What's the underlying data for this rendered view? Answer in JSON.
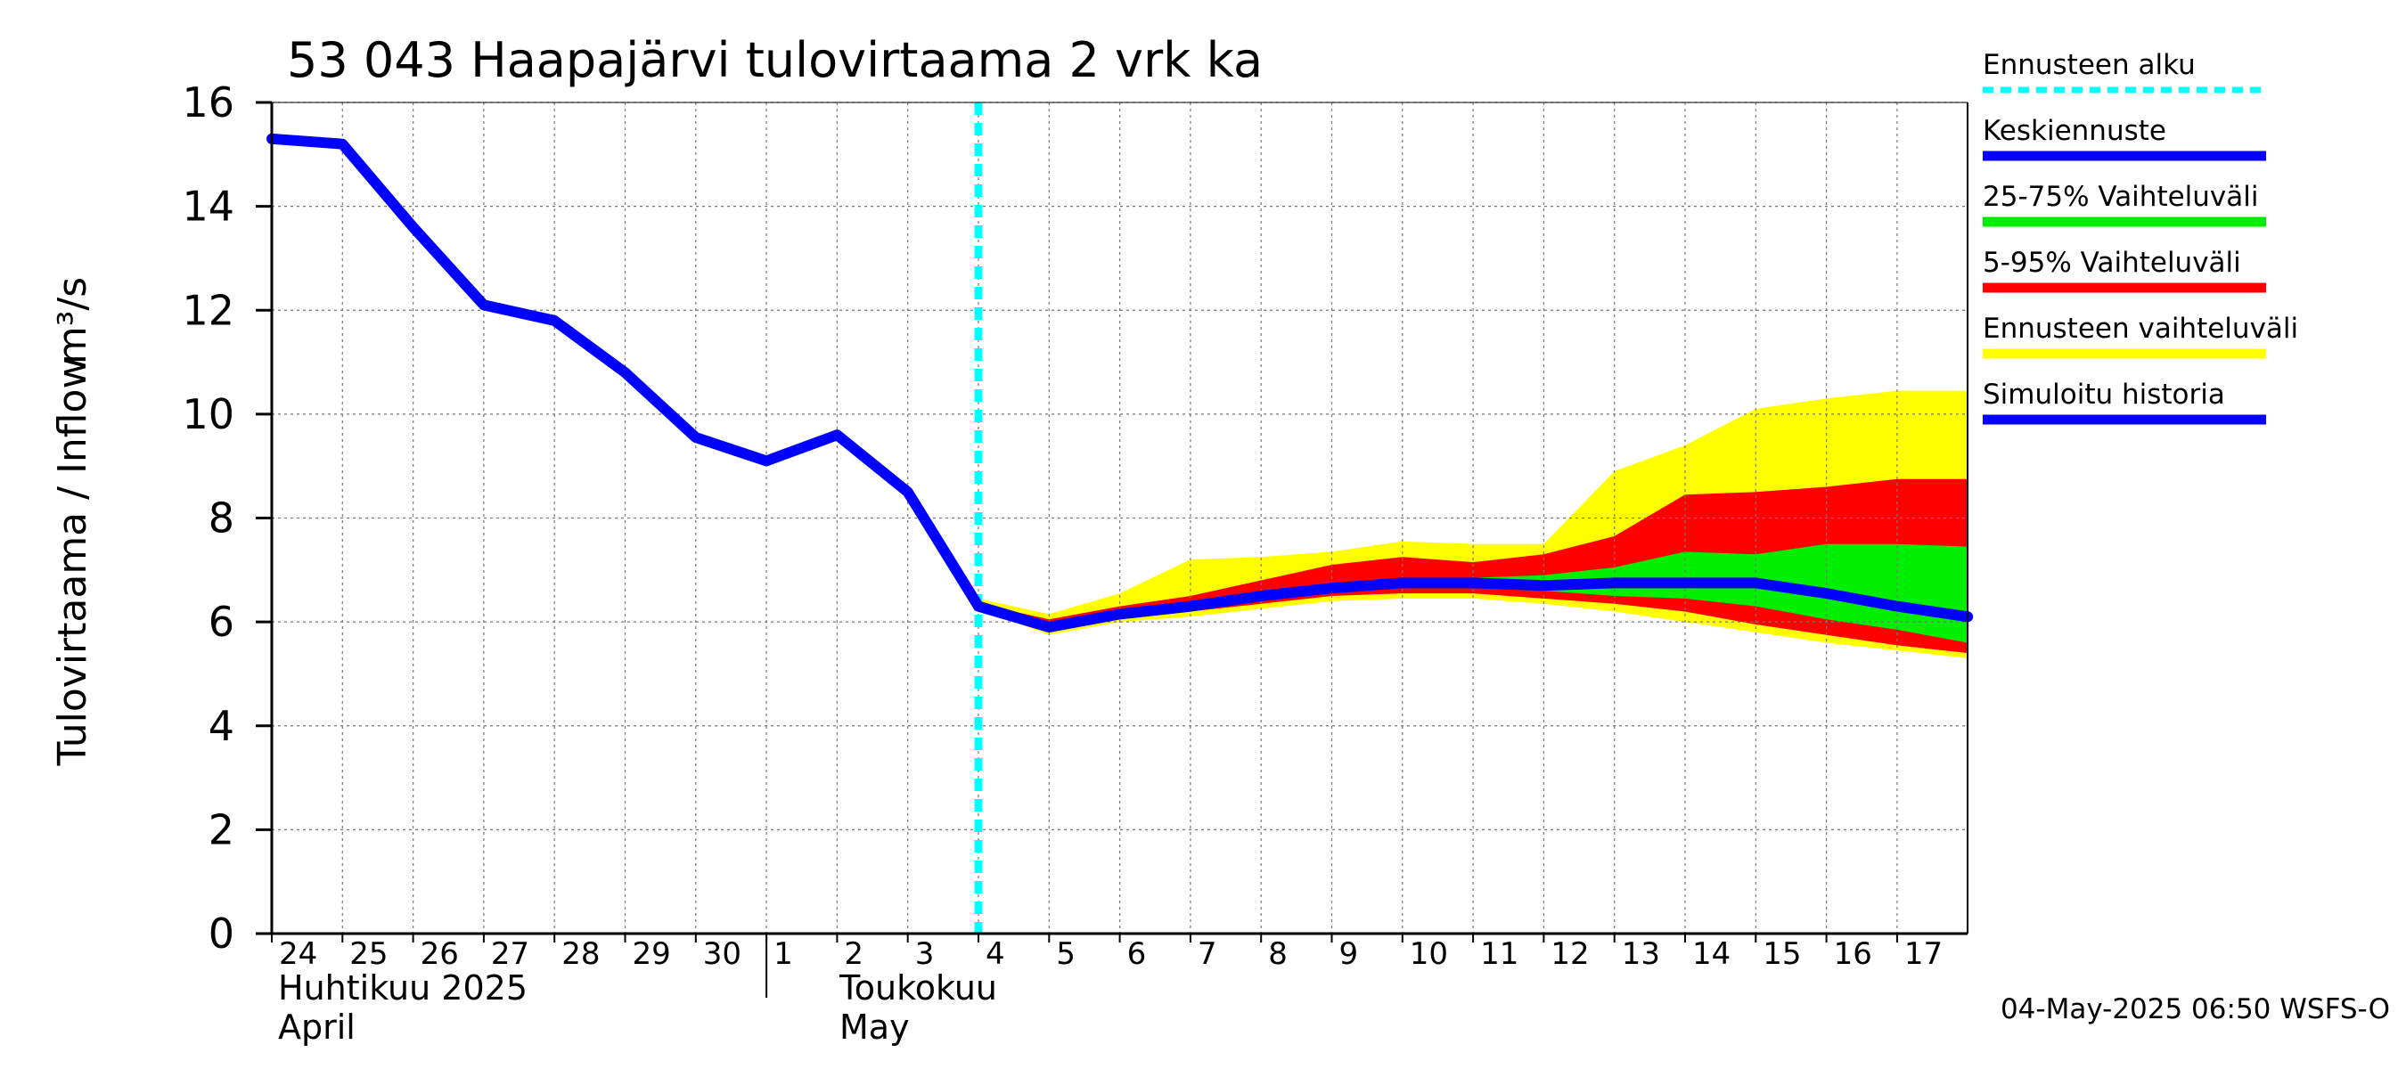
{
  "chart_data": {
    "type": "area",
    "title": "53 043 Haapajärvi tulovirtaama 2 vrk ka",
    "ylabel_fi": "Tulovirtaama / Inflow",
    "ylabel_unit": "m³/s",
    "ylim": [
      0,
      16
    ],
    "yticks": [
      "0",
      "2",
      "4",
      "6",
      "8",
      "10",
      "12",
      "14",
      "16"
    ],
    "x_day_labels": [
      "24",
      "25",
      "26",
      "27",
      "28",
      "29",
      "30",
      "1",
      "2",
      "3",
      "4",
      "5",
      "6",
      "7",
      "8",
      "9",
      "10",
      "11",
      "12",
      "13",
      "14",
      "15",
      "16",
      "17"
    ],
    "month_labels": {
      "april_fi": "Huhtikuu  2025",
      "april_en": "April",
      "may_fi": "Toukokuu",
      "may_en": "May"
    },
    "dates": [
      "2025-04-24",
      "2025-04-25",
      "2025-04-26",
      "2025-04-27",
      "2025-04-28",
      "2025-04-29",
      "2025-04-30",
      "2025-05-01",
      "2025-05-02",
      "2025-05-03",
      "2025-05-04",
      "2025-05-05",
      "2025-05-06",
      "2025-05-07",
      "2025-05-08",
      "2025-05-09",
      "2025-05-10",
      "2025-05-11",
      "2025-05-12",
      "2025-05-13",
      "2025-05-14",
      "2025-05-15",
      "2025-05-16",
      "2025-05-17",
      "2025-05-18"
    ],
    "forecast_start": "2025-05-04",
    "series": [
      {
        "name": "Simuloitu historia",
        "color": "#0000ff",
        "points": [
          [
            "2025-04-24",
            15.3
          ],
          [
            "2025-04-25",
            15.2
          ],
          [
            "2025-04-26",
            13.6
          ],
          [
            "2025-04-27",
            12.1
          ],
          [
            "2025-04-28",
            11.8
          ],
          [
            "2025-04-29",
            10.8
          ],
          [
            "2025-04-30",
            9.55
          ],
          [
            "2025-05-01",
            9.1
          ],
          [
            "2025-05-02",
            9.6
          ],
          [
            "2025-05-03",
            8.5
          ],
          [
            "2025-05-04",
            6.3
          ]
        ]
      },
      {
        "name": "Keskiennuste",
        "color": "#0000ff",
        "points": [
          [
            "2025-05-04",
            6.3
          ],
          [
            "2025-05-05",
            5.9
          ],
          [
            "2025-05-06",
            6.15
          ],
          [
            "2025-05-07",
            6.3
          ],
          [
            "2025-05-08",
            6.5
          ],
          [
            "2025-05-09",
            6.65
          ],
          [
            "2025-05-10",
            6.75
          ],
          [
            "2025-05-11",
            6.75
          ],
          [
            "2025-05-12",
            6.7
          ],
          [
            "2025-05-13",
            6.75
          ],
          [
            "2025-05-14",
            6.75
          ],
          [
            "2025-05-15",
            6.75
          ],
          [
            "2025-05-16",
            6.55
          ],
          [
            "2025-05-17",
            6.3
          ],
          [
            "2025-05-18",
            6.1
          ]
        ]
      }
    ],
    "bands": [
      {
        "name": "Ennusteen vaihteluväli",
        "color": "#ffff00",
        "dates": [
          "2025-05-04",
          "2025-05-05",
          "2025-05-06",
          "2025-05-07",
          "2025-05-08",
          "2025-05-09",
          "2025-05-10",
          "2025-05-11",
          "2025-05-12",
          "2025-05-13",
          "2025-05-14",
          "2025-05-15",
          "2025-05-16",
          "2025-05-17",
          "2025-05-18"
        ],
        "upper": [
          6.45,
          6.15,
          6.55,
          7.2,
          7.25,
          7.35,
          7.55,
          7.5,
          7.5,
          8.9,
          9.4,
          10.1,
          10.3,
          10.45,
          10.45
        ],
        "lower": [
          6.25,
          5.75,
          6.0,
          6.1,
          6.25,
          6.4,
          6.45,
          6.45,
          6.35,
          6.2,
          6.0,
          5.8,
          5.6,
          5.45,
          5.3
        ]
      },
      {
        "name": "5-95% Vaihteluväli",
        "color": "#ff0000",
        "dates": [
          "2025-05-04",
          "2025-05-05",
          "2025-05-06",
          "2025-05-07",
          "2025-05-08",
          "2025-05-09",
          "2025-05-10",
          "2025-05-11",
          "2025-05-12",
          "2025-05-13",
          "2025-05-14",
          "2025-05-15",
          "2025-05-16",
          "2025-05-17",
          "2025-05-18"
        ],
        "upper": [
          6.35,
          6.05,
          6.3,
          6.5,
          6.8,
          7.1,
          7.25,
          7.15,
          7.3,
          7.65,
          8.45,
          8.5,
          8.6,
          8.75,
          8.75
        ],
        "lower": [
          6.28,
          5.8,
          6.05,
          6.2,
          6.35,
          6.5,
          6.55,
          6.55,
          6.45,
          6.35,
          6.2,
          5.95,
          5.75,
          5.55,
          5.4
        ]
      },
      {
        "name": "25-75% Vaihteluväli",
        "color": "#00ee00",
        "dates": [
          "2025-05-04",
          "2025-05-05",
          "2025-05-06",
          "2025-05-07",
          "2025-05-08",
          "2025-05-09",
          "2025-05-10",
          "2025-05-11",
          "2025-05-12",
          "2025-05-13",
          "2025-05-14",
          "2025-05-15",
          "2025-05-16",
          "2025-05-17",
          "2025-05-18"
        ],
        "upper": [
          6.32,
          5.95,
          6.2,
          6.4,
          6.6,
          6.75,
          6.85,
          6.85,
          6.9,
          7.05,
          7.35,
          7.3,
          7.5,
          7.5,
          7.45
        ],
        "lower": [
          6.3,
          5.85,
          6.1,
          6.25,
          6.45,
          6.6,
          6.65,
          6.65,
          6.6,
          6.5,
          6.45,
          6.3,
          6.05,
          5.85,
          5.6
        ]
      }
    ],
    "legend": [
      {
        "label": "Ennusteen alku",
        "color": "#00ffff",
        "style": "dashed"
      },
      {
        "label": "Keskiennuste",
        "color": "#0000ff",
        "style": "solid"
      },
      {
        "label": "25-75% Vaihteluväli",
        "color": "#00ee00",
        "style": "solid"
      },
      {
        "label": "5-95% Vaihteluväli",
        "color": "#ff0000",
        "style": "solid"
      },
      {
        "label": "Ennusteen vaihteluväli",
        "color": "#ffff00",
        "style": "solid"
      },
      {
        "label": "Simuloitu historia",
        "color": "#0000ff",
        "style": "solid"
      }
    ],
    "legend_placement": "right",
    "grid": true,
    "timestamp": "04-May-2025 06:50 WSFS-O"
  }
}
